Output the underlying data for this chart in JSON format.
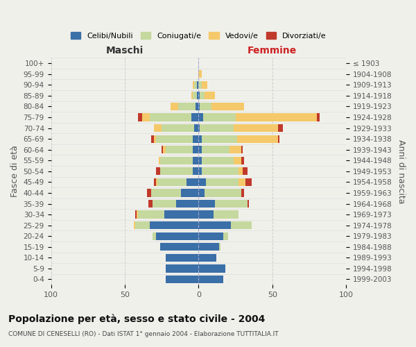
{
  "age_groups": [
    "100+",
    "95-99",
    "90-94",
    "85-89",
    "80-84",
    "75-79",
    "70-74",
    "65-69",
    "60-64",
    "55-59",
    "50-54",
    "45-49",
    "40-44",
    "35-39",
    "30-34",
    "25-29",
    "20-24",
    "15-19",
    "10-14",
    "5-9",
    "0-4"
  ],
  "birth_years": [
    "≤ 1903",
    "1904-1908",
    "1909-1913",
    "1914-1918",
    "1919-1923",
    "1924-1928",
    "1929-1933",
    "1934-1938",
    "1939-1943",
    "1944-1948",
    "1949-1953",
    "1954-1958",
    "1959-1963",
    "1964-1968",
    "1969-1973",
    "1974-1978",
    "1979-1983",
    "1984-1988",
    "1989-1993",
    "1994-1998",
    "1999-2003"
  ],
  "male": {
    "celibe": [
      0,
      0,
      1,
      1,
      2,
      5,
      3,
      4,
      4,
      4,
      4,
      8,
      12,
      15,
      23,
      33,
      29,
      26,
      22,
      22,
      22
    ],
    "coniugato": [
      0,
      0,
      2,
      3,
      12,
      28,
      22,
      25,
      18,
      22,
      22,
      20,
      20,
      16,
      18,
      10,
      2,
      0,
      0,
      0,
      0
    ],
    "vedovo": [
      0,
      0,
      1,
      1,
      5,
      5,
      5,
      1,
      2,
      1,
      0,
      1,
      0,
      0,
      1,
      1,
      0,
      0,
      0,
      0,
      0
    ],
    "divorziato": [
      0,
      0,
      0,
      0,
      0,
      3,
      0,
      2,
      1,
      0,
      3,
      1,
      3,
      3,
      1,
      0,
      0,
      0,
      0,
      0,
      0
    ]
  },
  "female": {
    "nubile": [
      0,
      0,
      0,
      1,
      1,
      3,
      1,
      2,
      2,
      2,
      2,
      5,
      4,
      11,
      10,
      22,
      17,
      14,
      12,
      18,
      17
    ],
    "coniugata": [
      0,
      0,
      2,
      3,
      8,
      22,
      23,
      24,
      19,
      22,
      25,
      22,
      25,
      22,
      17,
      14,
      3,
      1,
      0,
      0,
      0
    ],
    "vedova": [
      0,
      2,
      4,
      7,
      22,
      55,
      30,
      28,
      8,
      5,
      3,
      5,
      0,
      0,
      0,
      0,
      0,
      0,
      0,
      0,
      0
    ],
    "divorziata": [
      0,
      0,
      0,
      0,
      0,
      2,
      3,
      1,
      1,
      2,
      3,
      4,
      2,
      1,
      0,
      0,
      0,
      0,
      0,
      0,
      0
    ]
  },
  "colors": {
    "celibe": "#3a6fa8",
    "coniugato": "#c5d89e",
    "vedovo": "#f5c96a",
    "divorziato": "#c0392b"
  },
  "title": "Popolazione per età, sesso e stato civile - 2004",
  "subtitle": "COMUNE DI CENESELLI (RO) - Dati ISTAT 1° gennaio 2004 - Elaborazione TUTTITALIA.IT",
  "xlabel_left": "Maschi",
  "xlabel_right": "Femmine",
  "ylabel_left": "Fasce di età",
  "ylabel_right": "Anni di nascita",
  "xlim": 100,
  "legend_labels": [
    "Celibi/Nubili",
    "Coniugati/e",
    "Vedovi/e",
    "Divorziati/e"
  ],
  "background_color": "#f0f0eb"
}
